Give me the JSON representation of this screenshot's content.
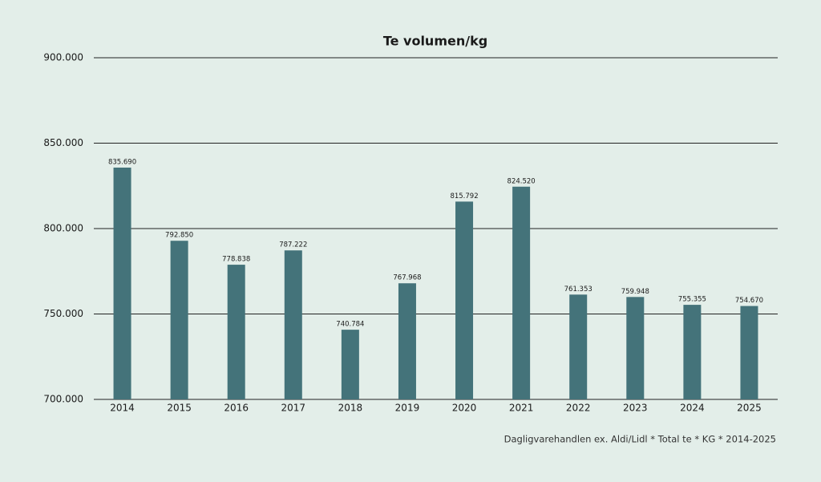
{
  "chart_data": {
    "type": "bar",
    "title": "Te volumen/kg",
    "categories": [
      "2014",
      "2015",
      "2016",
      "2017",
      "2018",
      "2019",
      "2020",
      "2021",
      "2022",
      "2023",
      "2024",
      "2025"
    ],
    "values": [
      835690,
      792850,
      778838,
      787222,
      740784,
      767968,
      815792,
      824520,
      761353,
      759948,
      755355,
      754670
    ],
    "value_labels": [
      "835.690",
      "792.850",
      "778.838",
      "787.222",
      "740.784",
      "767.968",
      "815.792",
      "824.520",
      "761.353",
      "759.948",
      "755.355",
      "754.670"
    ],
    "color": "#44737a",
    "ylim": [
      700000,
      900000
    ],
    "yticks": [
      {
        "value": 700000,
        "label": "700.000"
      },
      {
        "value": 750000,
        "label": "750.000"
      },
      {
        "value": 800000,
        "label": "800.000"
      },
      {
        "value": 850000,
        "label": "850.000"
      },
      {
        "value": 900000,
        "label": "900.000"
      }
    ],
    "grid": true,
    "source": "Dagligvarehandlen ex. Aldi/Lidl * Total te * KG * 2014-2025"
  }
}
